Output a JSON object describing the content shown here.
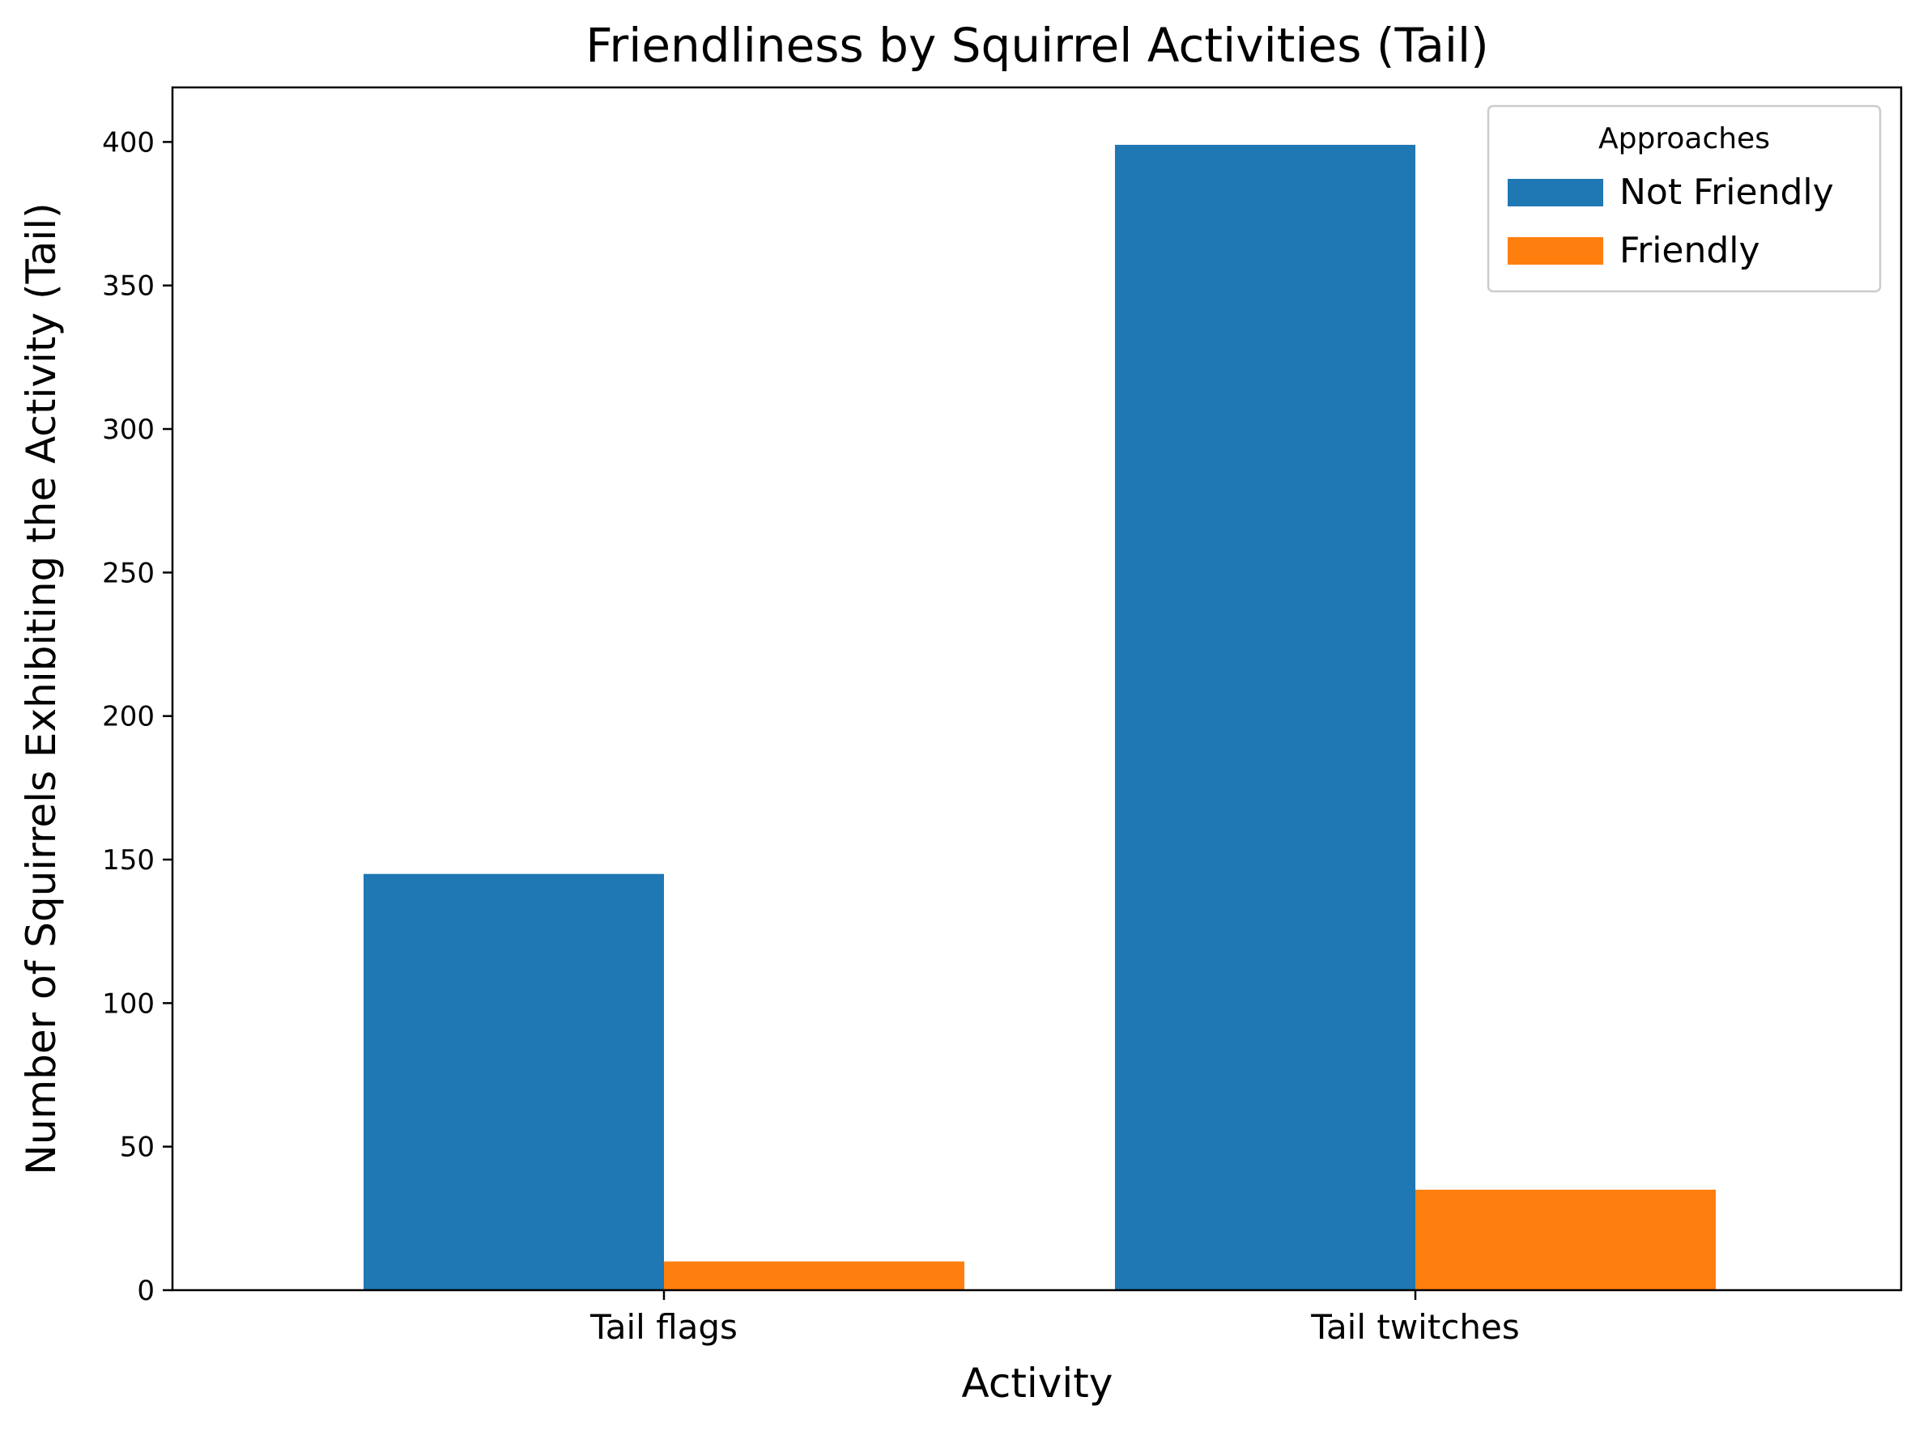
{
  "chart_data": {
    "type": "bar",
    "title": "Friendliness by Squirrel Activities (Tail)",
    "xlabel": "Activity",
    "ylabel": "Number of Squirrels Exhibiting the Activity (Tail)",
    "categories": [
      "Tail flags",
      "Tail twitches"
    ],
    "series": [
      {
        "name": "Not Friendly",
        "color": "#1f77b4",
        "values": [
          145,
          399
        ]
      },
      {
        "name": "Friendly",
        "color": "#ff7f0e",
        "values": [
          10,
          35
        ]
      }
    ],
    "ylim": [
      0,
      419
    ],
    "yticks": [
      0,
      50,
      100,
      150,
      200,
      250,
      300,
      350,
      400
    ],
    "grid": false,
    "legend": {
      "title": "Approaches",
      "position": "top-right"
    }
  }
}
